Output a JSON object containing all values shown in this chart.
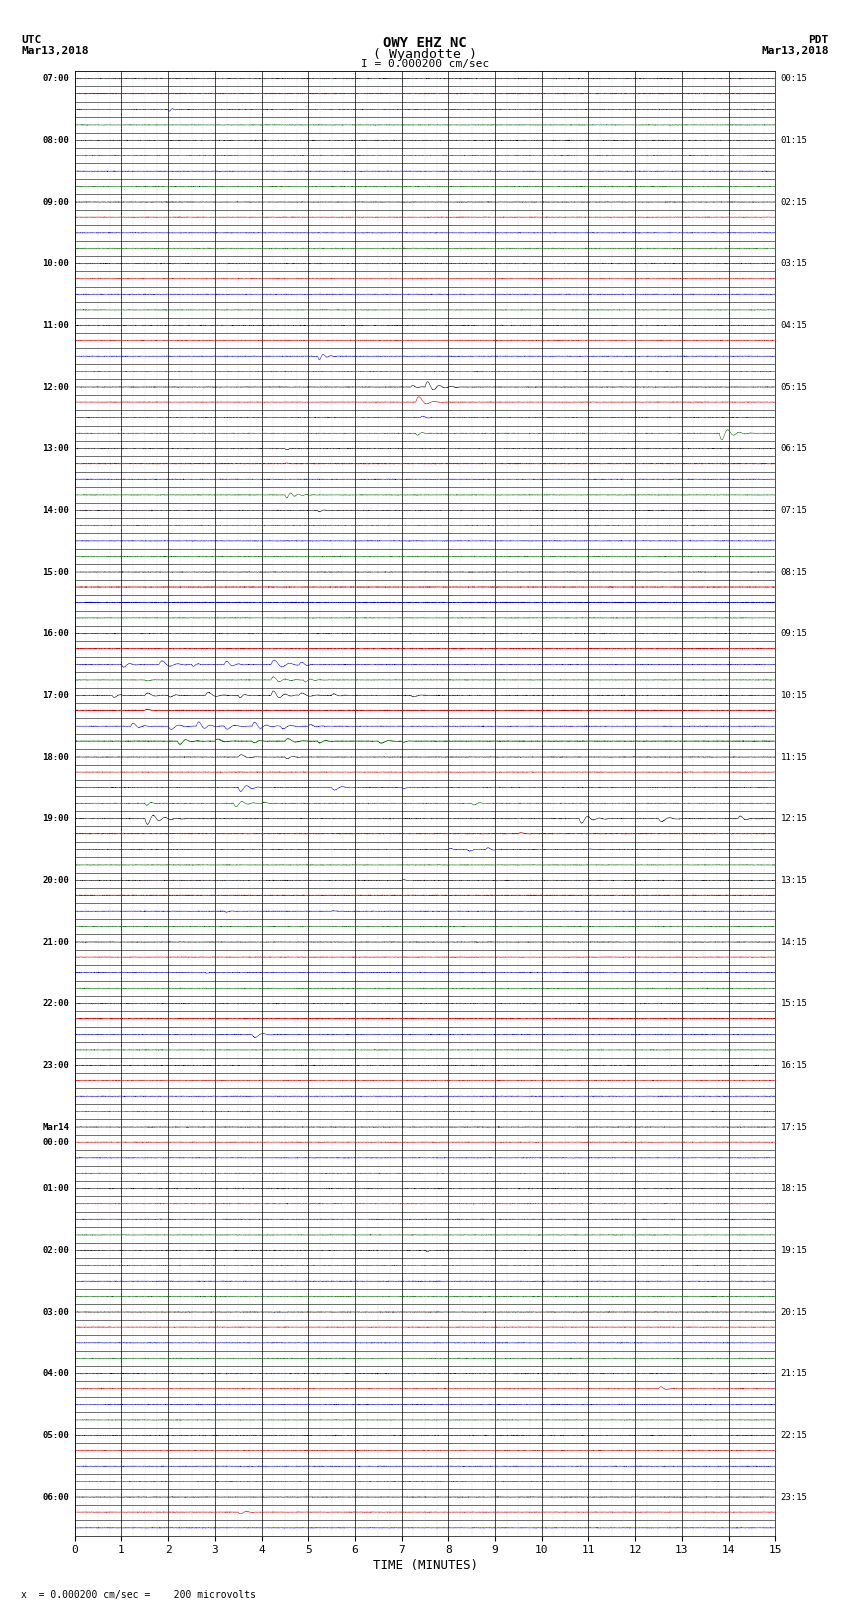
{
  "title_line1": "OWY EHZ NC",
  "title_line2": "( Wyandotte )",
  "scale_label": "I = 0.000200 cm/sec",
  "xlabel": "TIME (MINUTES)",
  "footer_label": "x  = 0.000200 cm/sec =    200 microvolts",
  "figwidth": 8.5,
  "figheight": 16.13,
  "bg_color": "#ffffff",
  "left_labels_full": [
    "07:00",
    "",
    "",
    "",
    "08:00",
    "",
    "",
    "",
    "09:00",
    "",
    "",
    "",
    "10:00",
    "",
    "",
    "",
    "11:00",
    "",
    "",
    "",
    "12:00",
    "",
    "",
    "",
    "13:00",
    "",
    "",
    "",
    "14:00",
    "",
    "",
    "",
    "15:00",
    "",
    "",
    "",
    "16:00",
    "",
    "",
    "",
    "17:00",
    "",
    "",
    "",
    "18:00",
    "",
    "",
    "",
    "19:00",
    "",
    "",
    "",
    "20:00",
    "",
    "",
    "",
    "21:00",
    "",
    "",
    "",
    "22:00",
    "",
    "",
    "",
    "23:00",
    "",
    "",
    "",
    "Mar14",
    "00:00",
    "",
    "",
    "01:00",
    "",
    "",
    "",
    "02:00",
    "",
    "",
    "",
    "03:00",
    "",
    "",
    "",
    "04:00",
    "",
    "",
    "",
    "05:00",
    "",
    "",
    "",
    "06:00",
    "",
    ""
  ],
  "right_labels_full": [
    "00:15",
    "",
    "",
    "",
    "01:15",
    "",
    "",
    "",
    "02:15",
    "",
    "",
    "",
    "03:15",
    "",
    "",
    "",
    "04:15",
    "",
    "",
    "",
    "05:15",
    "",
    "",
    "",
    "06:15",
    "",
    "",
    "",
    "07:15",
    "",
    "",
    "",
    "08:15",
    "",
    "",
    "",
    "09:15",
    "",
    "",
    "",
    "10:15",
    "",
    "",
    "",
    "11:15",
    "",
    "",
    "",
    "12:15",
    "",
    "",
    "",
    "13:15",
    "",
    "",
    "",
    "14:15",
    "",
    "",
    "",
    "15:15",
    "",
    "",
    "",
    "16:15",
    "",
    "",
    "",
    "17:15",
    "",
    "",
    "",
    "18:15",
    "",
    "",
    "",
    "19:15",
    "",
    "",
    "",
    "20:15",
    "",
    "",
    "",
    "21:15",
    "",
    "",
    "",
    "22:15",
    "",
    "",
    "",
    "23:15",
    "",
    ""
  ],
  "trace_colors": [
    "#000000",
    "#cc0000",
    "#0000cc",
    "#006600"
  ]
}
